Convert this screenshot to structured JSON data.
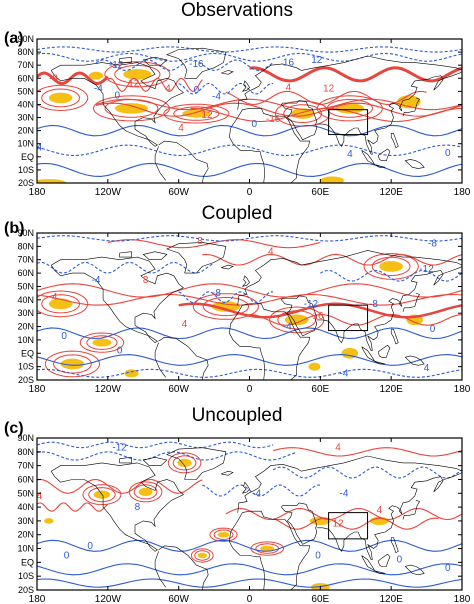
{
  "figure": {
    "panels": [
      {
        "label": "(a)",
        "title": "Observations",
        "contour_labels": [
          {
            "text": "-12",
            "color": "blue",
            "lon": -113,
            "lat": 70
          },
          {
            "text": "-16",
            "color": "blue",
            "lon": -45,
            "lat": 71
          },
          {
            "text": "16",
            "color": "blue",
            "lon": 33,
            "lat": 72
          },
          {
            "text": "12",
            "color": "blue",
            "lon": 57,
            "lat": 74
          },
          {
            "text": "-8",
            "color": "red",
            "lon": -166,
            "lat": 60
          },
          {
            "text": "-4",
            "color": "blue",
            "lon": -128,
            "lat": 52
          },
          {
            "text": "0",
            "color": "blue",
            "lon": -112,
            "lat": 47
          },
          {
            "text": "12",
            "color": "red",
            "lon": -98,
            "lat": 56
          },
          {
            "text": "4",
            "color": "red",
            "lon": -69,
            "lat": 52
          },
          {
            "text": "0",
            "color": "blue",
            "lon": -45,
            "lat": 51
          },
          {
            "text": "-4",
            "color": "blue",
            "lon": -28,
            "lat": 46
          },
          {
            "text": "4",
            "color": "red",
            "lon": 33,
            "lat": 53
          },
          {
            "text": "12",
            "color": "red",
            "lon": 67,
            "lat": 52
          },
          {
            "text": "12",
            "color": "red",
            "lon": -36,
            "lat": 32
          },
          {
            "text": "-16",
            "color": "red",
            "lon": 20,
            "lat": 29
          },
          {
            "text": "4",
            "color": "red",
            "lon": -58,
            "lat": 22
          },
          {
            "text": "0",
            "color": "blue",
            "lon": 4,
            "lat": 25
          },
          {
            "text": "4",
            "color": "blue",
            "lon": -178,
            "lat": 7
          },
          {
            "text": "4",
            "color": "blue",
            "lon": 85,
            "lat": 2
          },
          {
            "text": "0",
            "color": "blue",
            "lon": 168,
            "lat": 3
          }
        ]
      },
      {
        "label": "(b)",
        "title": "Coupled",
        "contour_labels": [
          {
            "text": "-8",
            "color": "blue",
            "lon": 155,
            "lat": 82
          },
          {
            "text": "8",
            "color": "red",
            "lon": -42,
            "lat": 84
          },
          {
            "text": "4",
            "color": "red",
            "lon": 18,
            "lat": 76
          },
          {
            "text": "-12",
            "color": "blue",
            "lon": 150,
            "lat": 63
          },
          {
            "text": "-4",
            "color": "blue",
            "lon": -130,
            "lat": 55
          },
          {
            "text": "8",
            "color": "red",
            "lon": -88,
            "lat": 55
          },
          {
            "text": "4",
            "color": "red",
            "lon": -165,
            "lat": 42
          },
          {
            "text": "-8",
            "color": "blue",
            "lon": -28,
            "lat": 45
          },
          {
            "text": "-12",
            "color": "blue",
            "lon": 52,
            "lat": 37
          },
          {
            "text": "4",
            "color": "red",
            "lon": -55,
            "lat": 22
          },
          {
            "text": "16",
            "color": "red",
            "lon": 58,
            "lat": 28
          },
          {
            "text": "-8",
            "color": "blue",
            "lon": 105,
            "lat": 37
          },
          {
            "text": "0",
            "color": "blue",
            "lon": -157,
            "lat": 13
          },
          {
            "text": "0",
            "color": "blue",
            "lon": -110,
            "lat": 2
          },
          {
            "text": "-4",
            "color": "blue",
            "lon": 32,
            "lat": 20
          },
          {
            "text": "0",
            "color": "blue",
            "lon": 155,
            "lat": 18
          },
          {
            "text": "4",
            "color": "blue",
            "lon": 150,
            "lat": -11
          },
          {
            "text": "-4",
            "color": "blue",
            "lon": 80,
            "lat": -15
          }
        ]
      },
      {
        "label": "(c)",
        "title": "Uncoupled",
        "contour_labels": [
          {
            "text": "-12",
            "color": "blue",
            "lon": -110,
            "lat": 83
          },
          {
            "text": "4",
            "color": "red",
            "lon": 75,
            "lat": 83
          },
          {
            "text": "4",
            "color": "red",
            "lon": -178,
            "lat": 48
          },
          {
            "text": "8",
            "color": "blue",
            "lon": -95,
            "lat": 40
          },
          {
            "text": "-4",
            "color": "blue",
            "lon": 6,
            "lat": 50
          },
          {
            "text": "-4",
            "color": "blue",
            "lon": 80,
            "lat": 50
          },
          {
            "text": "4",
            "color": "red",
            "lon": 110,
            "lat": 38
          },
          {
            "text": "12",
            "color": "red",
            "lon": 75,
            "lat": 28
          },
          {
            "text": "0",
            "color": "blue",
            "lon": -155,
            "lat": 5
          },
          {
            "text": "0",
            "color": "blue",
            "lon": -135,
            "lat": 12
          },
          {
            "text": "0",
            "color": "blue",
            "lon": 58,
            "lat": 5
          },
          {
            "text": "0",
            "color": "blue",
            "lon": 127,
            "lat": 2
          },
          {
            "text": "0",
            "color": "blue",
            "lon": 168,
            "lat": -4
          }
        ]
      }
    ],
    "y_ticks": [
      "90N",
      "80N",
      "70N",
      "60N",
      "50N",
      "40N",
      "30N",
      "20N",
      "10N",
      "EQ",
      "10S",
      "20S"
    ],
    "x_ticks": [
      "180",
      "120W",
      "60W",
      "0",
      "60E",
      "120E",
      "180"
    ],
    "colors": {
      "positive_contour": "#e8453c",
      "strong_positive": "#e8453c",
      "negative_contour": "#2d5bd6",
      "shading": "#f5c015",
      "coastline": "#000000",
      "box": "#000000"
    }
  }
}
